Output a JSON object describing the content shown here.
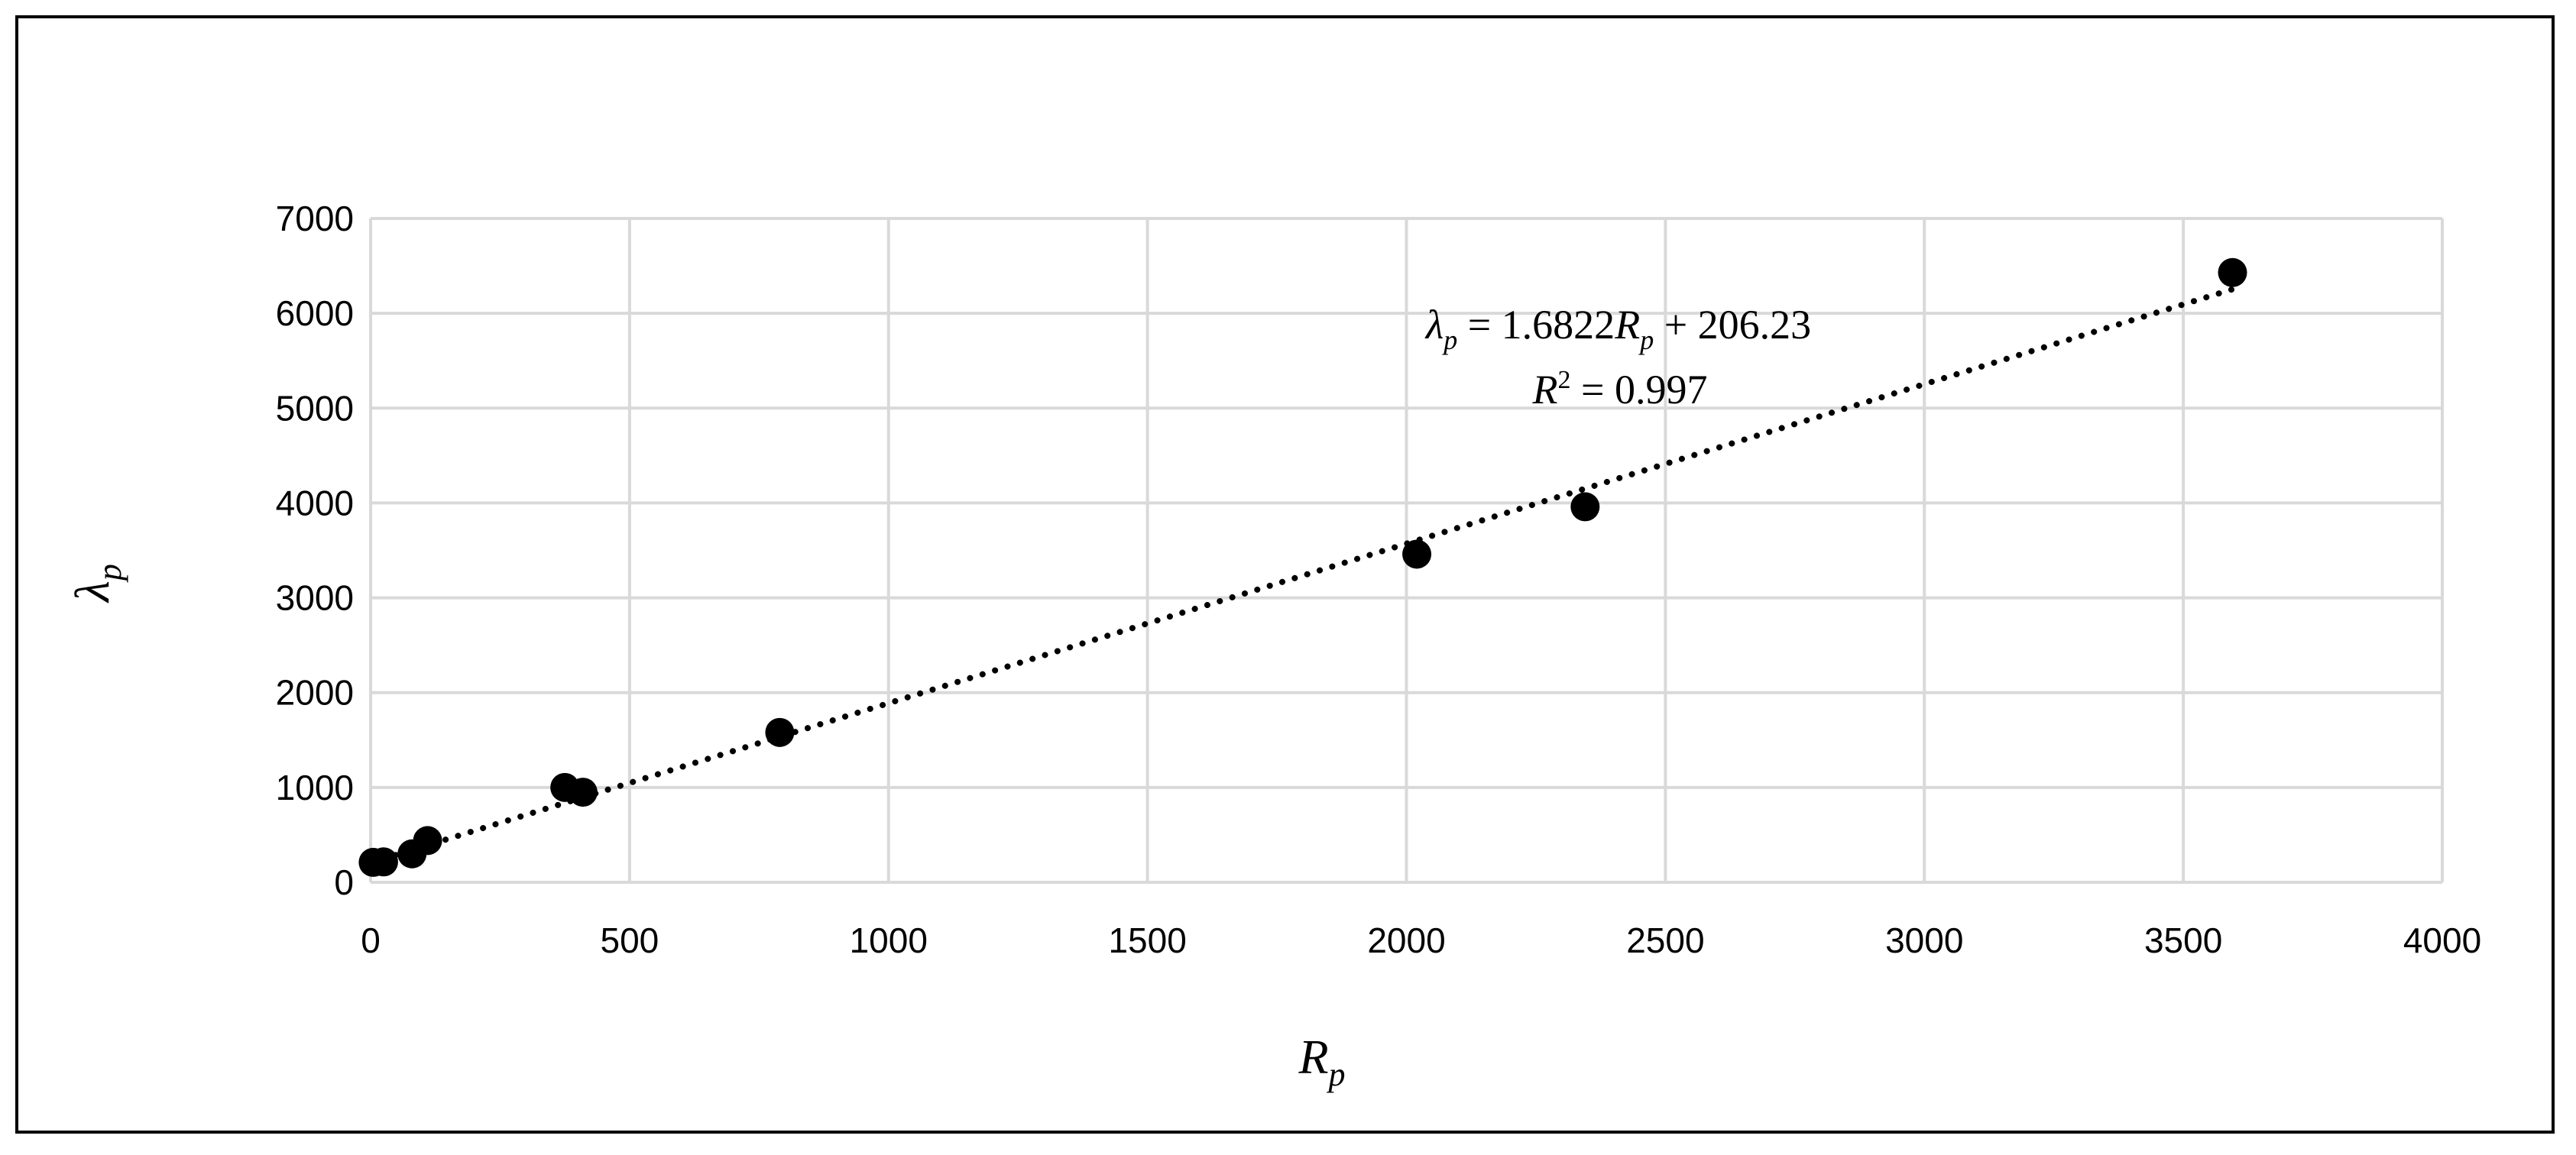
{
  "chart_data": {
    "type": "scatter",
    "title": "",
    "xlabel": {
      "base": "R",
      "sub": "p"
    },
    "ylabel": {
      "base": "λ",
      "sub": "p"
    },
    "xlim": [
      0,
      4000
    ],
    "ylim": [
      0,
      7000
    ],
    "x_ticks": [
      0,
      500,
      1000,
      1500,
      2000,
      2500,
      3000,
      3500,
      4000
    ],
    "y_ticks": [
      0,
      1000,
      2000,
      3000,
      4000,
      5000,
      6000,
      7000
    ],
    "grid": true,
    "legend": "none",
    "points": [
      {
        "x": 5,
        "y": 210
      },
      {
        "x": 25,
        "y": 215
      },
      {
        "x": 80,
        "y": 300
      },
      {
        "x": 110,
        "y": 440
      },
      {
        "x": 375,
        "y": 1000
      },
      {
        "x": 410,
        "y": 950
      },
      {
        "x": 790,
        "y": 1580
      },
      {
        "x": 2020,
        "y": 3460
      },
      {
        "x": 2345,
        "y": 3960
      },
      {
        "x": 3595,
        "y": 6430
      }
    ],
    "trendline": {
      "style": "dotted",
      "slope": 1.6822,
      "intercept": 206.23,
      "x_range": [
        0,
        3595
      ]
    },
    "annotation": {
      "lhs_base": "λ",
      "lhs_sub": "p",
      "coef": " = 1.6822",
      "var_base": "R",
      "var_sub": "p",
      "tail": " + 206.23",
      "r2_label": "R",
      "r2_sup": "2",
      "r2_value": " = 0.997"
    },
    "colors": {
      "marker": "#000000",
      "grid": "#d9d9d9",
      "line": "#000000"
    }
  }
}
